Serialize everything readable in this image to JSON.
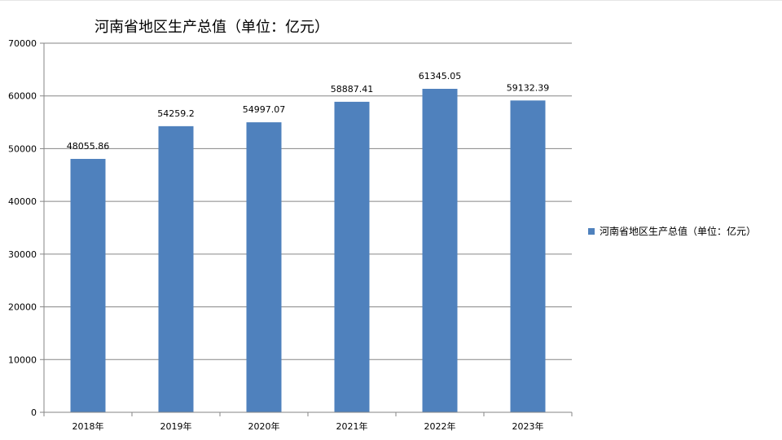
{
  "chart_data": {
    "type": "bar",
    "title": "河南省地区生产总值（单位：亿元）",
    "xlabel": "",
    "ylabel": "",
    "categories": [
      "2018年",
      "2019年",
      "2020年",
      "2021年",
      "2022年",
      "2023年"
    ],
    "series": [
      {
        "name": "河南省地区生产总值（单位：亿元）",
        "values": [
          48055.86,
          54259.2,
          54997.07,
          58887.41,
          61345.05,
          59132.39
        ],
        "data_labels": [
          "48055.86",
          "54259.2",
          "54997.07",
          "58887.41",
          "61345.05",
          "59132.39"
        ],
        "color": "#4f81bd"
      }
    ],
    "ylim": [
      0,
      70000
    ],
    "yticks": [
      0,
      10000,
      20000,
      30000,
      40000,
      50000,
      60000,
      70000
    ],
    "ytick_labels": [
      "0",
      "10000",
      "20000",
      "30000",
      "40000",
      "50000",
      "60000",
      "70000"
    ],
    "grid": true,
    "legend_position": "right",
    "colors": {
      "grid": "#868686",
      "axis": "#868686"
    }
  }
}
